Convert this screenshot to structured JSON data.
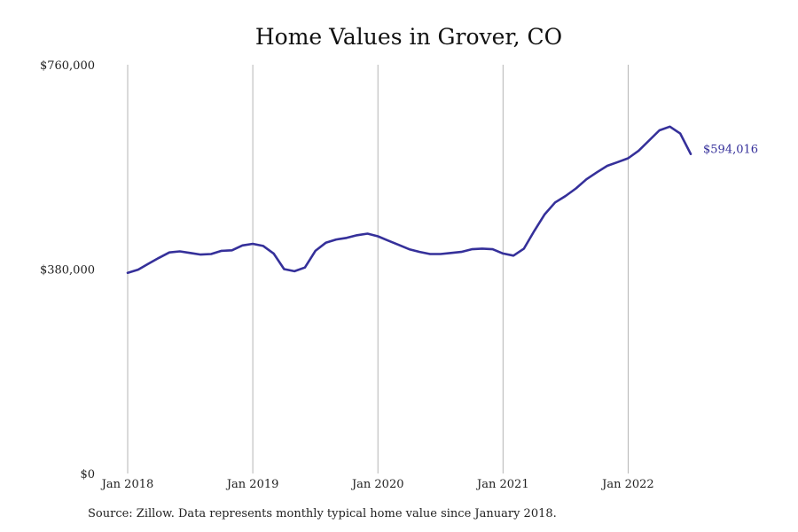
{
  "chart_data": {
    "type": "line",
    "title": "Home Values in Grover, CO",
    "xlabel": "",
    "ylabel": "",
    "ylim": [
      0,
      760000
    ],
    "y_ticks": [
      {
        "value": 0,
        "label": "$0"
      },
      {
        "value": 380000,
        "label": "$380,000"
      },
      {
        "value": 760000,
        "label": "$760,000"
      }
    ],
    "x_ticks": [
      {
        "value": "2018-01",
        "label": "Jan 2018"
      },
      {
        "value": "2019-01",
        "label": "Jan 2019"
      },
      {
        "value": "2020-01",
        "label": "Jan 2020"
      },
      {
        "value": "2021-01",
        "label": "Jan 2021"
      },
      {
        "value": "2022-01",
        "label": "Jan 2022"
      }
    ],
    "grid": {
      "vertical": true,
      "horizontal": false
    },
    "series": [
      {
        "color": "#35309a",
        "end_label": "$594,016",
        "x": [
          "2018-01",
          "2018-02",
          "2018-03",
          "2018-04",
          "2018-05",
          "2018-06",
          "2018-07",
          "2018-08",
          "2018-09",
          "2018-10",
          "2018-11",
          "2018-12",
          "2019-01",
          "2019-02",
          "2019-03",
          "2019-04",
          "2019-05",
          "2019-06",
          "2019-07",
          "2019-08",
          "2019-09",
          "2019-10",
          "2019-11",
          "2019-12",
          "2020-01",
          "2020-02",
          "2020-03",
          "2020-04",
          "2020-05",
          "2020-06",
          "2020-07",
          "2020-08",
          "2020-09",
          "2020-10",
          "2020-11",
          "2020-12",
          "2021-01",
          "2021-02",
          "2021-03",
          "2021-04",
          "2021-05",
          "2021-06",
          "2021-07",
          "2021-08",
          "2021-09",
          "2021-10",
          "2021-11",
          "2021-12",
          "2022-01",
          "2022-02",
          "2022-03",
          "2022-04",
          "2022-05",
          "2022-06",
          "2022-07"
        ],
        "values": [
          373000,
          379000,
          390000,
          401000,
          411000,
          413000,
          410000,
          407000,
          408000,
          414000,
          415000,
          424000,
          427000,
          423000,
          409000,
          380000,
          376000,
          383000,
          414000,
          429000,
          435000,
          438000,
          443000,
          446000,
          441000,
          433000,
          425000,
          417000,
          412000,
          408000,
          408000,
          410000,
          412000,
          417000,
          418000,
          417000,
          409000,
          405000,
          418000,
          451000,
          482000,
          504000,
          516000,
          530000,
          547000,
          560000,
          572000,
          579000,
          586000,
          600000,
          619000,
          638000,
          645000,
          632000,
          594016
        ]
      }
    ]
  },
  "footer": {
    "source": "Source: Zillow. Data represents monthly typical home value since January 2018."
  }
}
